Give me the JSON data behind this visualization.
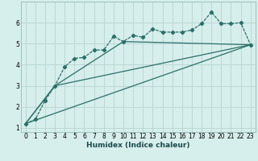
{
  "xlabel": "Humidex (Indice chaleur)",
  "background_color": "#d6eeec",
  "grid_color": "#b8d4d0",
  "line_color": "#2a7068",
  "xlim": [
    -0.5,
    23.5
  ],
  "ylim": [
    0.8,
    7.0
  ],
  "xticks": [
    0,
    1,
    2,
    3,
    4,
    5,
    6,
    7,
    8,
    9,
    10,
    11,
    12,
    13,
    14,
    15,
    16,
    17,
    18,
    19,
    20,
    21,
    22,
    23
  ],
  "yticks": [
    1,
    2,
    3,
    4,
    5,
    6
  ],
  "series_main_x": [
    0,
    1,
    2,
    3,
    4,
    5,
    6,
    7,
    8,
    9,
    10,
    11,
    12,
    13,
    14,
    15,
    16,
    17,
    18,
    19,
    20,
    21,
    22,
    23
  ],
  "series_main_y": [
    1.2,
    1.4,
    2.3,
    3.0,
    3.9,
    4.3,
    4.35,
    4.7,
    4.7,
    5.35,
    5.1,
    5.4,
    5.3,
    5.7,
    5.55,
    5.55,
    5.55,
    5.65,
    5.95,
    6.5,
    5.95,
    5.95,
    6.0,
    4.95
  ],
  "line1_x": [
    0,
    23
  ],
  "line1_y": [
    1.2,
    4.95
  ],
  "line2_x": [
    0,
    3,
    23
  ],
  "line2_y": [
    1.2,
    3.0,
    4.95
  ],
  "line3_x": [
    0,
    3,
    10,
    23
  ],
  "line3_y": [
    1.2,
    3.0,
    5.1,
    4.95
  ]
}
